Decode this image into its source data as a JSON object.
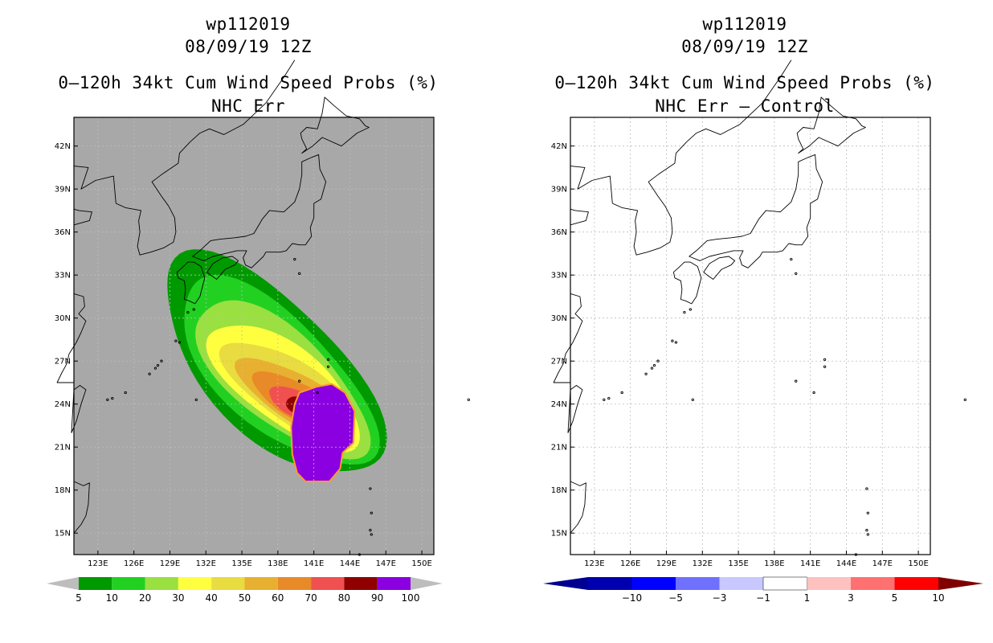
{
  "left": {
    "title1": "wp112019",
    "title2": "08/09/19 12Z",
    "title3": "0–120h 34kt Cum Wind Speed Probs (%)",
    "title4": "NHC Err",
    "colorbar": {
      "labels": [
        "5",
        "10",
        "20",
        "30",
        "40",
        "50",
        "60",
        "70",
        "80",
        "90",
        "100"
      ],
      "colors": [
        "#009a00",
        "#22d022",
        "#9ae040",
        "#ffff40",
        "#e8dc40",
        "#e8b030",
        "#e88a28",
        "#f05050",
        "#900000",
        "#8a00e0"
      ],
      "end_color": "#bdbdbd"
    },
    "background": "#a8a8a8"
  },
  "right": {
    "title1": "wp112019",
    "title2": "08/09/19 12Z",
    "title3": "0–120h 34kt Cum Wind Speed Probs (%)",
    "title4": "NHC Err – Control",
    "colorbar": {
      "labels": [
        "−10",
        "−5",
        "−3",
        "−1",
        "1",
        "3",
        "5",
        "10"
      ],
      "colors": [
        "#0000b0",
        "#0000ff",
        "#7070ff",
        "#c8c8ff",
        "#ffffff",
        "#ffc0c0",
        "#ff7070",
        "#ff0000"
      ],
      "end_low": "#000090",
      "end_high": "#800000"
    },
    "background": "#ffffff"
  },
  "chart_data": [
    {
      "type": "heatmap",
      "title": "0–120h 34kt Cum Wind Speed Probs (%) — NHC Err",
      "storm": "wp112019",
      "time": "08/09/19 12Z",
      "x_ticks": [
        "123E",
        "126E",
        "129E",
        "132E",
        "135E",
        "138E",
        "141E",
        "144E",
        "147E",
        "150E"
      ],
      "y_ticks": [
        "15N",
        "18N",
        "21N",
        "24N",
        "27N",
        "30N",
        "33N",
        "36N",
        "39N",
        "42N"
      ],
      "xlim": [
        121,
        151
      ],
      "ylim": [
        13.5,
        44
      ],
      "levels": [
        5,
        10,
        20,
        30,
        40,
        50,
        60,
        70,
        80,
        90,
        100
      ],
      "max_region_value": 100
    },
    {
      "type": "heatmap",
      "title": "0–120h 34kt Cum Wind Speed Probs (%) — NHC Err – Control",
      "storm": "wp112019",
      "time": "08/09/19 12Z",
      "x_ticks": [
        "123E",
        "126E",
        "129E",
        "132E",
        "135E",
        "138E",
        "141E",
        "144E",
        "147E",
        "150E"
      ],
      "y_ticks": [
        "15N",
        "18N",
        "21N",
        "24N",
        "27N",
        "30N",
        "33N",
        "36N",
        "39N",
        "42N"
      ],
      "xlim": [
        121,
        151
      ],
      "ylim": [
        13.5,
        44
      ],
      "levels": [
        -10,
        -5,
        -3,
        -1,
        1,
        3,
        5,
        10
      ],
      "field": "all differences between -1 and 1"
    }
  ]
}
